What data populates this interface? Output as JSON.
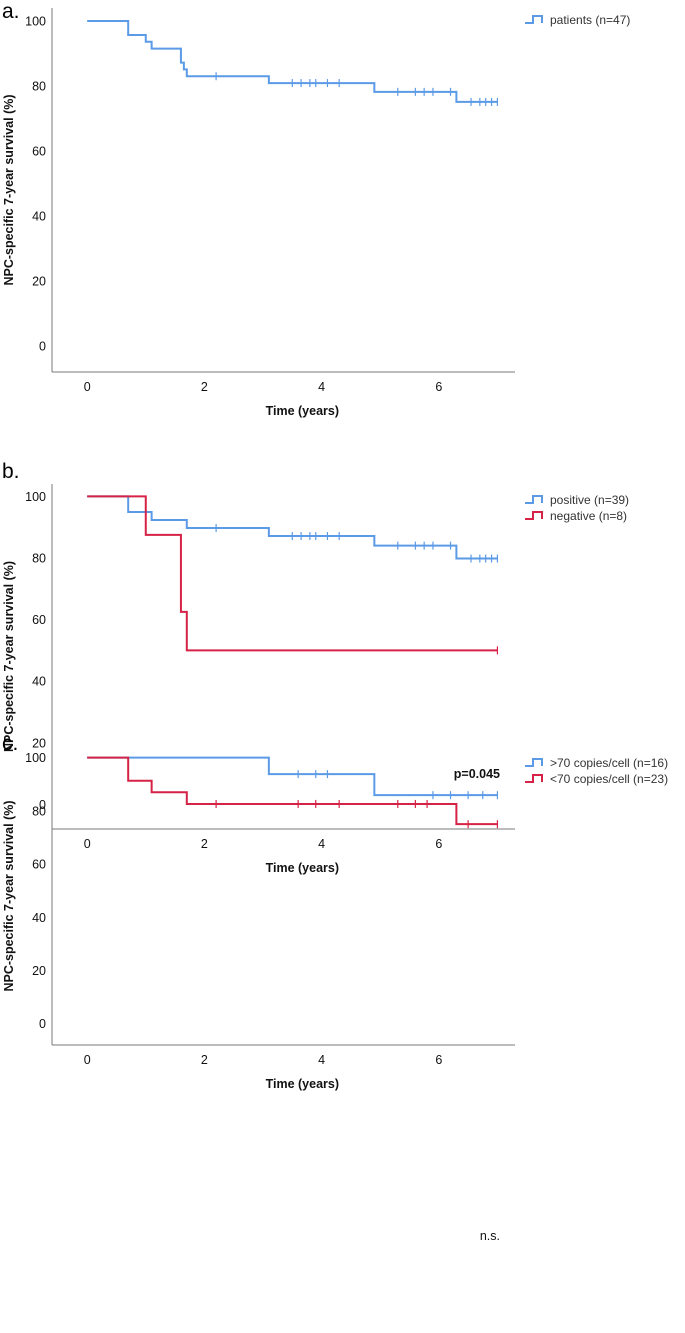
{
  "colors": {
    "blue": "#5b9ae6",
    "red": "#d62246",
    "axis": "#7a7a7a",
    "text": "#111111"
  },
  "chart_data": [
    {
      "type": "line",
      "subtype": "kaplan-meier",
      "panel": "a.",
      "ylabel": "NPC-specific 7-year survival (%)",
      "xlabel": "Time (years)",
      "xlim": [
        -0.6,
        7.3
      ],
      "ylim": [
        -8,
        104
      ],
      "x_ticks": [
        0,
        2,
        4,
        6
      ],
      "y_ticks": [
        0,
        20,
        40,
        60,
        80,
        100
      ],
      "series": [
        {
          "name": "patients (n=47)",
          "color": "#5b9ae6",
          "steps": [
            [
              0,
              100
            ],
            [
              0.7,
              95.7
            ],
            [
              1.0,
              93.6
            ],
            [
              1.1,
              91.5
            ],
            [
              1.6,
              87.2
            ],
            [
              1.65,
              85.1
            ],
            [
              1.7,
              83.0
            ],
            [
              3.1,
              80.9
            ],
            [
              4.9,
              78.2
            ],
            [
              6.3,
              75.1
            ],
            [
              7.0,
              75.1
            ]
          ],
          "censored": [
            [
              2.2,
              83.0
            ],
            [
              3.5,
              80.9
            ],
            [
              3.65,
              80.9
            ],
            [
              3.8,
              80.9
            ],
            [
              3.9,
              80.9
            ],
            [
              4.1,
              80.9
            ],
            [
              4.3,
              80.9
            ],
            [
              5.3,
              78.2
            ],
            [
              5.6,
              78.2
            ],
            [
              5.75,
              78.2
            ],
            [
              5.9,
              78.2
            ],
            [
              6.2,
              78.2
            ],
            [
              6.55,
              75.1
            ],
            [
              6.7,
              75.1
            ],
            [
              6.8,
              75.1
            ],
            [
              6.9,
              75.1
            ],
            [
              7.0,
              75.1
            ]
          ]
        }
      ],
      "annotation": ""
    },
    {
      "type": "line",
      "subtype": "kaplan-meier",
      "panel": "b.",
      "ylabel": "NPC-specific 7-year survival (%)",
      "xlabel": "Time (years)",
      "xlim": [
        -0.6,
        7.3
      ],
      "ylim": [
        -8,
        104
      ],
      "x_ticks": [
        0,
        2,
        4,
        6
      ],
      "y_ticks": [
        0,
        20,
        40,
        60,
        80,
        100
      ],
      "series": [
        {
          "name": "positive (n=39)",
          "color": "#5b9ae6",
          "steps": [
            [
              0,
              100
            ],
            [
              0.7,
              94.9
            ],
            [
              1.1,
              92.3
            ],
            [
              1.7,
              89.7
            ],
            [
              3.1,
              87.1
            ],
            [
              4.9,
              84.0
            ],
            [
              6.3,
              79.8
            ],
            [
              7.0,
              79.8
            ]
          ],
          "censored": [
            [
              2.2,
              89.7
            ],
            [
              3.5,
              87.1
            ],
            [
              3.65,
              87.1
            ],
            [
              3.8,
              87.1
            ],
            [
              3.9,
              87.1
            ],
            [
              4.1,
              87.1
            ],
            [
              4.3,
              87.1
            ],
            [
              5.3,
              84.0
            ],
            [
              5.6,
              84.0
            ],
            [
              5.75,
              84.0
            ],
            [
              5.9,
              84.0
            ],
            [
              6.2,
              84.0
            ],
            [
              6.55,
              79.8
            ],
            [
              6.7,
              79.8
            ],
            [
              6.8,
              79.8
            ],
            [
              6.9,
              79.8
            ],
            [
              7.0,
              79.8
            ]
          ]
        },
        {
          "name": "negative (n=8)",
          "color": "#d62246",
          "steps": [
            [
              0,
              100
            ],
            [
              1.0,
              87.5
            ],
            [
              1.6,
              62.5
            ],
            [
              1.7,
              50.0
            ],
            [
              7.0,
              50.0
            ]
          ],
          "censored": [
            [
              7.0,
              50.0
            ]
          ]
        }
      ],
      "annotation": "p=0.045"
    },
    {
      "type": "line",
      "subtype": "kaplan-meier",
      "panel": "c.",
      "ylabel": "NPC-specific 7-year survival (%)",
      "xlabel": "Time (years)",
      "xlim": [
        -0.6,
        7.3
      ],
      "ylim": [
        -8,
        104
      ],
      "x_ticks": [
        0,
        2,
        4,
        6
      ],
      "y_ticks": [
        0,
        20,
        40,
        60,
        80,
        100
      ],
      "series": [
        {
          "name": ">70 copies/cell (n=16)",
          "color": "#5b9ae6",
          "steps": [
            [
              0,
              100
            ],
            [
              3.1,
              93.8
            ],
            [
              4.9,
              85.9
            ],
            [
              7.0,
              85.9
            ]
          ],
          "censored": [
            [
              3.6,
              93.8
            ],
            [
              3.9,
              93.8
            ],
            [
              4.1,
              93.8
            ],
            [
              5.9,
              85.9
            ],
            [
              6.2,
              85.9
            ],
            [
              6.5,
              85.9
            ],
            [
              6.75,
              85.9
            ],
            [
              7.0,
              85.9
            ]
          ]
        },
        {
          "name": "<70 copies/cell (n=23)",
          "color": "#d62246",
          "steps": [
            [
              0,
              100
            ],
            [
              0.7,
              91.3
            ],
            [
              1.1,
              87.0
            ],
            [
              1.7,
              82.6
            ],
            [
              6.3,
              75.0
            ],
            [
              7.0,
              75.0
            ]
          ],
          "censored": [
            [
              2.2,
              82.6
            ],
            [
              3.6,
              82.6
            ],
            [
              3.9,
              82.6
            ],
            [
              4.3,
              82.6
            ],
            [
              5.3,
              82.6
            ],
            [
              5.6,
              82.6
            ],
            [
              5.8,
              82.6
            ],
            [
              6.5,
              75.0
            ],
            [
              7.0,
              75.0
            ]
          ]
        }
      ],
      "annotation": "n.s."
    }
  ]
}
